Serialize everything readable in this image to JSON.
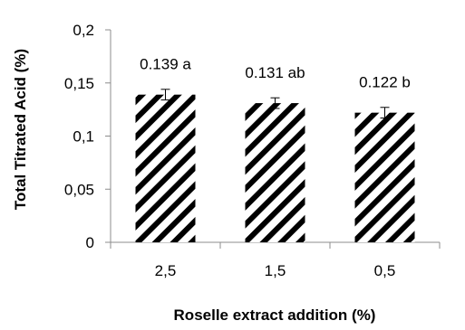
{
  "chart_data": {
    "type": "bar",
    "title": "",
    "xlabel": "Roselle extract addition (%)",
    "ylabel": "Total Titrated Acid (%)",
    "categories": [
      "2,5",
      "1,5",
      "0,5"
    ],
    "values": [
      0.139,
      0.131,
      0.122
    ],
    "errors": [
      0.005,
      0.005,
      0.005
    ],
    "data_labels": [
      "0.139 a",
      "0.131 ab",
      "0.122 b"
    ],
    "ylim": [
      0,
      0.2
    ],
    "yticks": [
      0,
      0.05,
      0.1,
      0.15,
      0.2
    ],
    "ytick_labels": [
      "0",
      "0,05",
      "0,1",
      "0,15",
      "0,2"
    ],
    "grid": false,
    "legend": "none",
    "bar_fill": "diagonal-hatch",
    "bar_colors": {
      "stripe": "#000000",
      "background": "#ffffff"
    }
  }
}
